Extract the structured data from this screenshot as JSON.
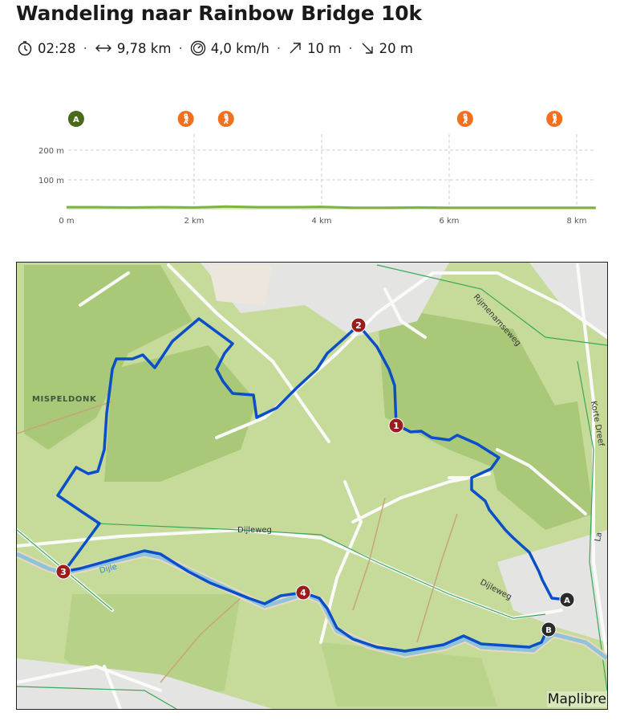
{
  "title": "Wandeling naar Rainbow Bridge 10k",
  "stats": [
    {
      "icon": "stopwatch-icon",
      "value": "02:28"
    },
    {
      "icon": "distance-arrows-icon",
      "value": "9,78 km"
    },
    {
      "icon": "speedometer-icon",
      "value": "4,0 km/h"
    },
    {
      "icon": "ascent-arrow-icon",
      "value": "10 m"
    },
    {
      "icon": "descent-arrow-icon",
      "value": "20 m"
    }
  ],
  "separator": "·",
  "chart_data": {
    "type": "area",
    "title": "",
    "xlabel": "",
    "ylabel": "",
    "x_ticks": [
      "0 m",
      "2 km",
      "4 km",
      "6 km",
      "8 km"
    ],
    "y_ticks": [
      "100 m",
      "200 m"
    ],
    "xlim": [
      0,
      8.3
    ],
    "ylim": [
      0,
      260
    ],
    "grid": true,
    "x": [
      0,
      0.5,
      1,
      1.5,
      2,
      2.5,
      3,
      3.5,
      4,
      4.5,
      5,
      5.5,
      6,
      6.5,
      7,
      7.5,
      8,
      8.3
    ],
    "values": [
      8,
      8,
      7,
      8,
      7,
      10,
      8,
      8,
      9,
      6,
      6,
      7,
      6,
      6,
      6,
      6,
      6,
      6
    ],
    "color": "#7cb342",
    "markers": [
      {
        "type": "start",
        "label": "A",
        "x": 0.15,
        "color": "#4a6a1a"
      },
      {
        "type": "hiker",
        "x": 1.87,
        "color": "#f07020"
      },
      {
        "type": "hiker",
        "x": 2.5,
        "color": "#f07020"
      },
      {
        "type": "hiker",
        "x": 6.25,
        "color": "#f07020"
      },
      {
        "type": "hiker",
        "x": 7.65,
        "color": "#f07020"
      }
    ]
  },
  "map": {
    "labels": {
      "mispeldonk": "MISPELDONK",
      "rijmenamseweg": "Rijmenamseweg",
      "korte_dreef": "Korte Dreef",
      "dijleweg_1": "Dijleweg",
      "dijleweg_2": "Dijleweg",
      "dijle": "Dijle",
      "la": "La"
    },
    "waypoints": [
      "1",
      "2",
      "3",
      "4"
    ],
    "start": "A",
    "end": "B",
    "route_color": "#0a4fc8",
    "waypoint_color": "#9b1c1c",
    "attribution": "Maplibre"
  }
}
